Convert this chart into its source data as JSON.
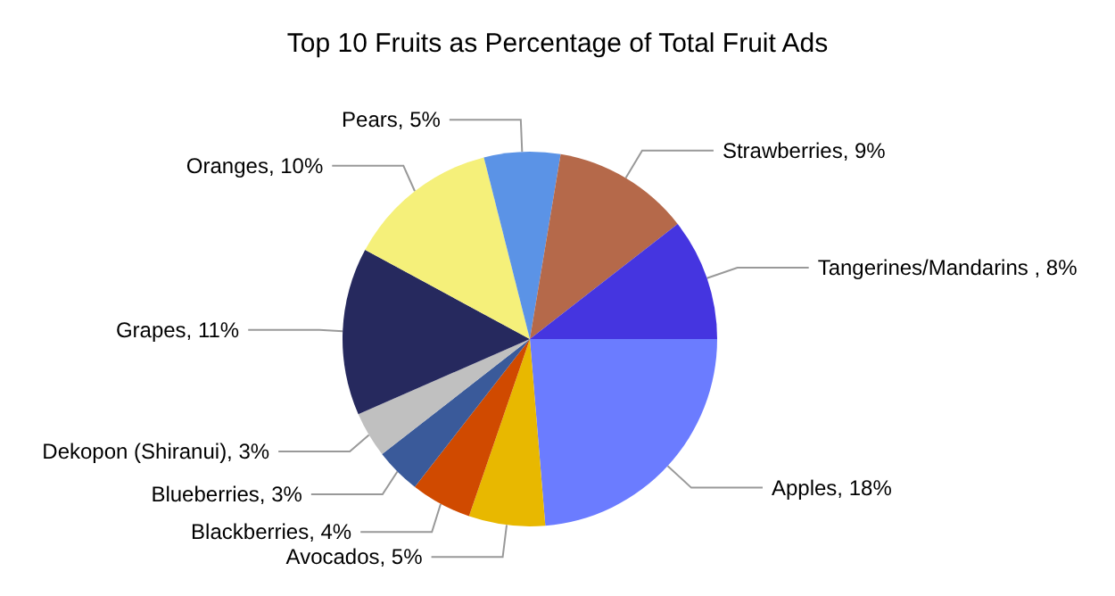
{
  "chart_data": {
    "type": "pie",
    "title": "Top 10 Fruits as Percentage of Total Fruit Ads",
    "categories": [
      "Apples",
      "Avocados",
      "Blackberries",
      "Blueberries",
      "Dekopon (Shiranui)",
      "Grapes",
      "Oranges",
      "Pears",
      "Strawberries",
      "Tangerines/Mandarins "
    ],
    "values": [
      18,
      5,
      4,
      3,
      3,
      11,
      10,
      5,
      9,
      8
    ],
    "value_labels": [
      "18%",
      "5%",
      "4%",
      "3%",
      "3%",
      "11%",
      "10%",
      "5%",
      "9%",
      "8%"
    ],
    "colors": [
      "#6b7cff",
      "#e8b800",
      "#d04a00",
      "#3a5a9a",
      "#c0c0c0",
      "#26295e",
      "#f5f07a",
      "#5b93e6",
      "#b5694a",
      "#4535e0"
    ]
  }
}
